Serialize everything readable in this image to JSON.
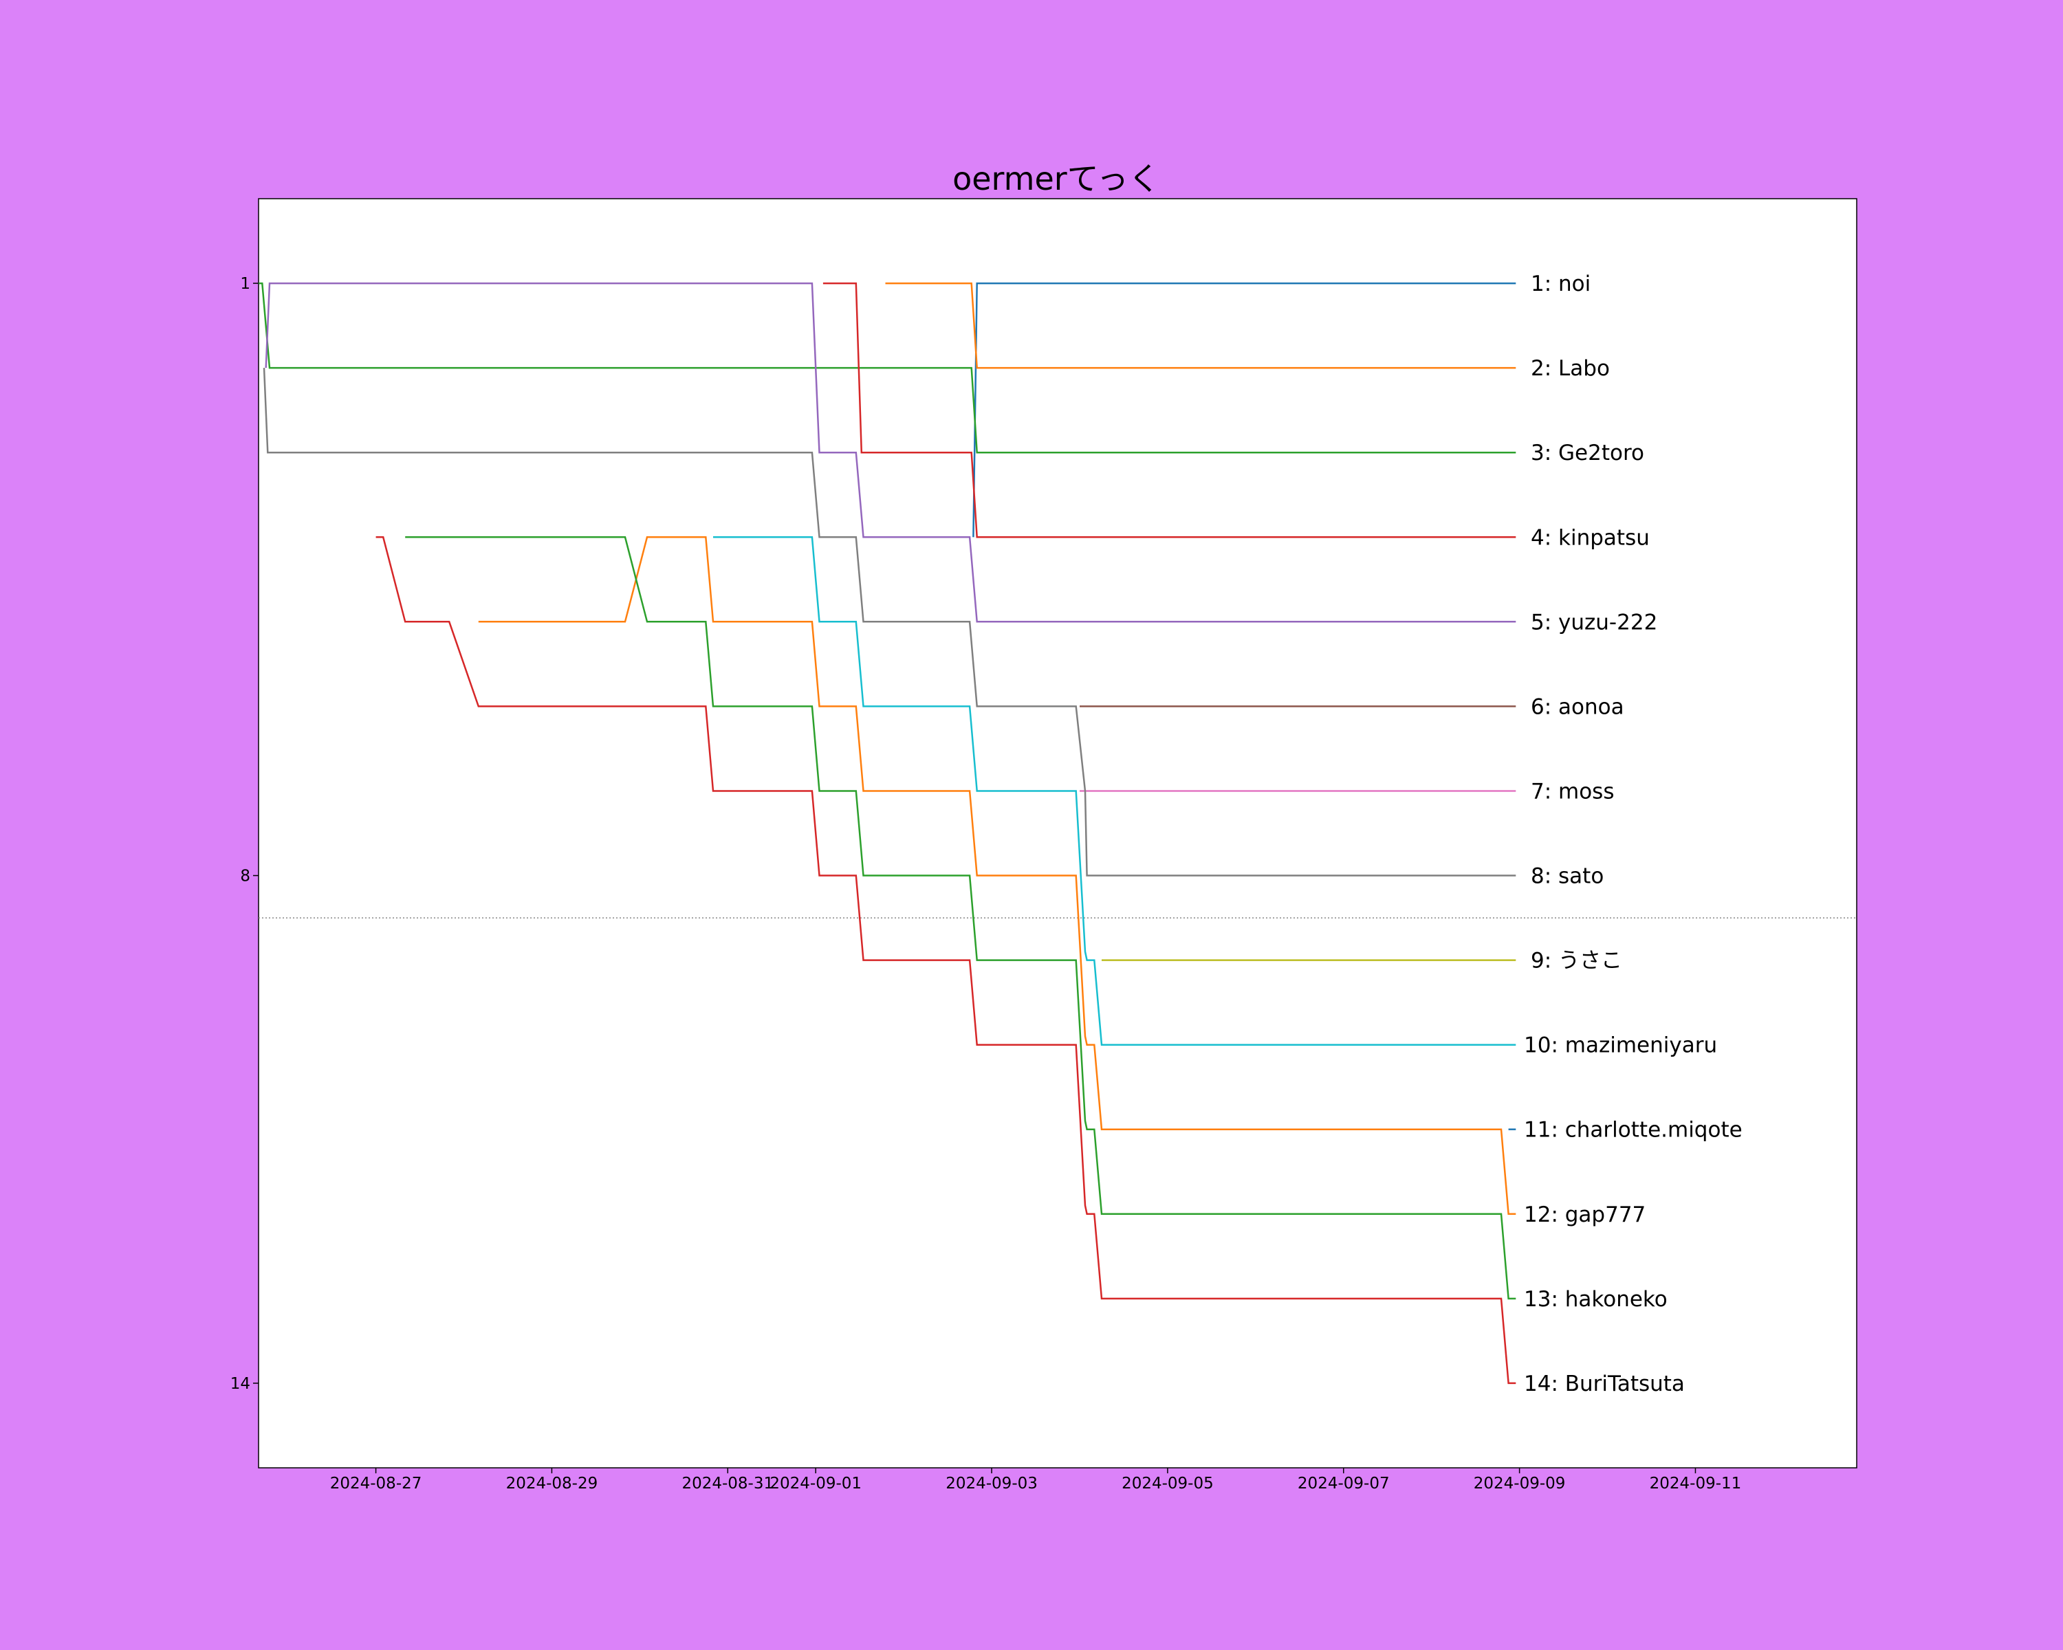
{
  "chart_data": {
    "type": "line",
    "title": "oermerてっく",
    "xlabel": "",
    "ylabel": "",
    "background_color": "#db82f9",
    "plot_background": "#ffffff",
    "x_range": [
      "2024-08-25T16:00",
      "2024-09-12T20:00"
    ],
    "y_range": [
      15,
      0
    ],
    "y_inverted": true,
    "grid": false,
    "y_ticks": [
      1,
      8,
      14
    ],
    "x_ticks": [
      "2024-08-27",
      "2024-08-29",
      "2024-08-31",
      "2024-09-01",
      "2024-09-03",
      "2024-09-05",
      "2024-09-07",
      "2024-09-09",
      "2024-09-11"
    ],
    "cutoff_line": {
      "y": 8.5,
      "style": "dotted",
      "color": "#888888"
    },
    "series": [
      {
        "name": "noi",
        "rank": 1,
        "color": "#1f77b4",
        "points": [
          [
            "2024-09-02T19:00",
            4
          ],
          [
            "2024-09-02T20:00",
            1
          ],
          [
            "2024-09-08T23:00",
            1
          ]
        ]
      },
      {
        "name": "Labo",
        "rank": 2,
        "color": "#ff7f0e",
        "points": [
          [
            "2024-09-01T19:00",
            1
          ],
          [
            "2024-09-02T18:30",
            1
          ],
          [
            "2024-09-02T20:00",
            2
          ],
          [
            "2024-09-08T23:00",
            2
          ]
        ]
      },
      {
        "name": "Ge2toro",
        "rank": 3,
        "color": "#2ca02c",
        "points": [
          [
            "2024-08-25T16:00",
            1
          ],
          [
            "2024-08-25T17:00",
            1
          ],
          [
            "2024-08-25T19:00",
            2
          ],
          [
            "2024-09-02T18:30",
            2
          ],
          [
            "2024-09-02T20:00",
            3
          ],
          [
            "2024-09-08T23:00",
            3
          ]
        ]
      },
      {
        "name": "kinpatsu",
        "rank": 4,
        "color": "#d62728",
        "points": [
          [
            "2024-09-01T02:00",
            1
          ],
          [
            "2024-09-01T11:00",
            1
          ],
          [
            "2024-09-01T12:30",
            3
          ],
          [
            "2024-09-02T18:30",
            3
          ],
          [
            "2024-09-02T20:00",
            4
          ],
          [
            "2024-09-08T23:00",
            4
          ]
        ]
      },
      {
        "name": "yuzu-222",
        "rank": 5,
        "color": "#9467bd",
        "points": [
          [
            "2024-08-25T18:00",
            2
          ],
          [
            "2024-08-25T19:00",
            1
          ],
          [
            "2024-08-31T23:00",
            1
          ],
          [
            "2024-09-01T01:00",
            3
          ],
          [
            "2024-09-01T11:00",
            3
          ],
          [
            "2024-09-01T13:00",
            4
          ],
          [
            "2024-09-02T18:00",
            4
          ],
          [
            "2024-09-02T20:00",
            5
          ],
          [
            "2024-09-08T23:00",
            5
          ]
        ]
      },
      {
        "name": "aonoa",
        "rank": 6,
        "color": "#8c564b",
        "points": [
          [
            "2024-09-04T00:00",
            6
          ],
          [
            "2024-09-08T23:00",
            6
          ]
        ]
      },
      {
        "name": "moss",
        "rank": 7,
        "color": "#e377c2",
        "points": [
          [
            "2024-09-04T00:00",
            7
          ],
          [
            "2024-09-08T23:00",
            7
          ]
        ]
      },
      {
        "name": "sato",
        "rank": 8,
        "color": "#7f7f7f",
        "points": [
          [
            "2024-08-25T17:30",
            2
          ],
          [
            "2024-08-25T18:30",
            3
          ],
          [
            "2024-08-31T23:00",
            3
          ],
          [
            "2024-09-01T01:00",
            4
          ],
          [
            "2024-09-01T11:00",
            4
          ],
          [
            "2024-09-01T13:00",
            5
          ],
          [
            "2024-09-02T18:00",
            5
          ],
          [
            "2024-09-02T20:00",
            6
          ],
          [
            "2024-09-03T23:00",
            6
          ],
          [
            "2024-09-04T01:30",
            7
          ],
          [
            "2024-09-04T02:00",
            8
          ],
          [
            "2024-09-08T23:00",
            8
          ]
        ]
      },
      {
        "name": "うさこ",
        "rank": 9,
        "color": "#bcbd22",
        "points": [
          [
            "2024-09-04T06:00",
            9
          ],
          [
            "2024-09-08T23:00",
            9
          ]
        ]
      },
      {
        "name": "mazimeniyaru",
        "rank": 10,
        "color": "#17becf",
        "points": [
          [
            "2024-08-30T20:00",
            4
          ],
          [
            "2024-08-31T23:00",
            4
          ],
          [
            "2024-09-01T01:00",
            5
          ],
          [
            "2024-09-01T11:00",
            5
          ],
          [
            "2024-09-01T13:00",
            6
          ],
          [
            "2024-09-02T18:00",
            6
          ],
          [
            "2024-09-02T20:00",
            7
          ],
          [
            "2024-09-03T23:00",
            7
          ],
          [
            "2024-09-04T01:30",
            8.9
          ],
          [
            "2024-09-04T02:00",
            9
          ],
          [
            "2024-09-04T04:00",
            9
          ],
          [
            "2024-09-04T06:00",
            10
          ],
          [
            "2024-09-08T23:00",
            10
          ]
        ]
      },
      {
        "name": "charlotte.miqote",
        "rank": 11,
        "color": "#1f77b4",
        "points": [
          [
            "2024-09-08T21:00",
            11
          ],
          [
            "2024-09-08T23:00",
            11
          ]
        ]
      },
      {
        "name": "gap777",
        "rank": 12,
        "color": "#ff7f0e",
        "points": [
          [
            "2024-08-28T04:00",
            5
          ],
          [
            "2024-08-29T20:00",
            5
          ],
          [
            "2024-08-30T02:00",
            4
          ],
          [
            "2024-08-30T18:00",
            4
          ],
          [
            "2024-08-30T20:00",
            5
          ],
          [
            "2024-08-31T23:00",
            5
          ],
          [
            "2024-09-01T01:00",
            6
          ],
          [
            "2024-09-01T11:00",
            6
          ],
          [
            "2024-09-01T13:00",
            7
          ],
          [
            "2024-09-02T18:00",
            7
          ],
          [
            "2024-09-02T20:00",
            8
          ],
          [
            "2024-09-03T23:00",
            8
          ],
          [
            "2024-09-04T01:30",
            9.9
          ],
          [
            "2024-09-04T02:00",
            10
          ],
          [
            "2024-09-04T04:00",
            10
          ],
          [
            "2024-09-04T06:00",
            11
          ],
          [
            "2024-09-08T19:00",
            11
          ],
          [
            "2024-09-08T21:00",
            12
          ],
          [
            "2024-09-08T23:00",
            12
          ]
        ]
      },
      {
        "name": "hakoneko",
        "rank": 13,
        "color": "#2ca02c",
        "points": [
          [
            "2024-08-27T08:00",
            4
          ],
          [
            "2024-08-29T20:00",
            4
          ],
          [
            "2024-08-30T02:00",
            5
          ],
          [
            "2024-08-30T18:00",
            5
          ],
          [
            "2024-08-30T20:00",
            6
          ],
          [
            "2024-08-31T23:00",
            6
          ],
          [
            "2024-09-01T01:00",
            7
          ],
          [
            "2024-09-01T11:00",
            7
          ],
          [
            "2024-09-01T13:00",
            8
          ],
          [
            "2024-09-02T18:00",
            8
          ],
          [
            "2024-09-02T20:00",
            9
          ],
          [
            "2024-09-03T23:00",
            9
          ],
          [
            "2024-09-04T01:30",
            10.9
          ],
          [
            "2024-09-04T02:00",
            11
          ],
          [
            "2024-09-04T04:00",
            11
          ],
          [
            "2024-09-04T06:00",
            12
          ],
          [
            "2024-09-08T19:00",
            12
          ],
          [
            "2024-09-08T21:00",
            13
          ],
          [
            "2024-09-08T23:00",
            13
          ]
        ]
      },
      {
        "name": "BuriTatsuta",
        "rank": 14,
        "color": "#d62728",
        "points": [
          [
            "2024-08-27T00:00",
            4
          ],
          [
            "2024-08-27T02:00",
            4
          ],
          [
            "2024-08-27T08:00",
            5
          ],
          [
            "2024-08-27T20:00",
            5
          ],
          [
            "2024-08-28T04:00",
            6
          ],
          [
            "2024-08-30T18:00",
            6
          ],
          [
            "2024-08-30T20:00",
            7
          ],
          [
            "2024-08-31T23:00",
            7
          ],
          [
            "2024-09-01T01:00",
            8
          ],
          [
            "2024-09-01T11:00",
            8
          ],
          [
            "2024-09-01T13:00",
            9
          ],
          [
            "2024-09-02T18:00",
            9
          ],
          [
            "2024-09-02T20:00",
            10
          ],
          [
            "2024-09-03T23:00",
            10
          ],
          [
            "2024-09-04T01:30",
            11.9
          ],
          [
            "2024-09-04T02:00",
            12
          ],
          [
            "2024-09-04T04:00",
            12
          ],
          [
            "2024-09-04T06:00",
            13
          ],
          [
            "2024-09-08T19:00",
            13
          ],
          [
            "2024-09-08T21:00",
            14
          ],
          [
            "2024-09-08T23:00",
            14
          ]
        ]
      }
    ]
  }
}
